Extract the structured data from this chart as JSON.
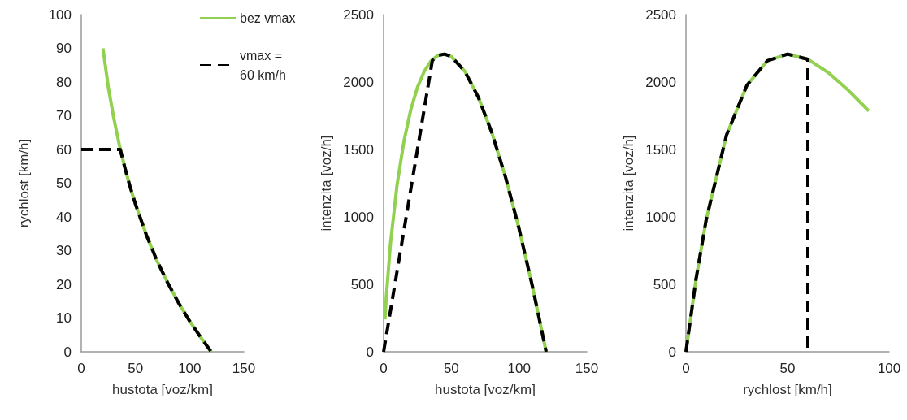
{
  "chart_data": [
    {
      "type": "line",
      "xlabel": "hustota [voz/km]",
      "ylabel": "rychlost [km/h]",
      "xlim": [
        0,
        150
      ],
      "xticks": [
        0,
        50,
        100,
        150
      ],
      "ylim": [
        0,
        100
      ],
      "yticks": [
        0,
        10,
        20,
        30,
        40,
        50,
        60,
        70,
        80,
        90,
        100
      ],
      "grid": false,
      "legend": "top right",
      "marker": "none",
      "series": [
        {
          "name": "bez vmax",
          "color": "#92d050",
          "line_style": "solid",
          "x": [
            20,
            25,
            30,
            35,
            40,
            45,
            50,
            60,
            70,
            80,
            90,
            100,
            110,
            120
          ],
          "values": [
            90,
            78.4,
            69.3,
            61.6,
            54.9,
            49,
            43.8,
            34.7,
            26.9,
            20.3,
            14.4,
            9.1,
            4.4,
            0
          ]
        },
        {
          "name": "vmax = 60 km/h",
          "color": "#000000",
          "line_style": "dashed",
          "x": [
            0,
            36,
            40,
            45,
            50,
            60,
            70,
            80,
            90,
            100,
            110,
            120
          ],
          "values": [
            60,
            60,
            54.9,
            49,
            43.8,
            34.7,
            26.9,
            20.3,
            14.4,
            9.1,
            4.4,
            0
          ]
        }
      ]
    },
    {
      "type": "line",
      "xlabel": "hustota [voz/km]",
      "ylabel": "intenzita [voz/h]",
      "xlim": [
        0,
        150
      ],
      "xticks": [
        0,
        50,
        100,
        150
      ],
      "ylim": [
        0,
        2500
      ],
      "yticks": [
        0,
        500,
        1000,
        1500,
        2000,
        2500
      ],
      "grid": false,
      "legend": false,
      "marker": "none",
      "series": [
        {
          "color": "#92d050",
          "line_style": "solid",
          "x": [
            1,
            2,
            5,
            10,
            15,
            20,
            25,
            30,
            35,
            40,
            45,
            50,
            60,
            70,
            80,
            90,
            100,
            110,
            120
          ],
          "values": [
            240,
            409,
            795,
            1242,
            1560,
            1792,
            1961,
            2079,
            2156,
            2197,
            2207,
            2189,
            2079,
            1886,
            1622,
            1295,
            912,
            479,
            0
          ]
        },
        {
          "color": "#000000",
          "line_style": "dashed",
          "x": [
            0,
            36,
            40,
            45,
            50,
            60,
            70,
            80,
            90,
            100,
            110,
            120
          ],
          "values": [
            0,
            2160,
            2197,
            2207,
            2189,
            2079,
            1886,
            1622,
            1295,
            912,
            479,
            0
          ]
        }
      ]
    },
    {
      "type": "line",
      "xlabel": "rychlost [km/h]",
      "ylabel": "intenzita [voz/h]",
      "xlim": [
        0,
        100
      ],
      "xticks": [
        0,
        50,
        100
      ],
      "ylim": [
        0,
        2500
      ],
      "yticks": [
        0,
        500,
        1000,
        1500,
        2000,
        2500
      ],
      "grid": false,
      "legend": false,
      "marker": "none",
      "series": [
        {
          "color": "#92d050",
          "line_style": "solid",
          "x": [
            0,
            5,
            10,
            20,
            30,
            40,
            50,
            60,
            70,
            80,
            90
          ],
          "values": [
            0,
            543,
            982,
            1609,
            1976,
            2157,
            2207,
            2169,
            2071,
            1938,
            1785
          ]
        },
        {
          "color": "#000000",
          "line_style": "dashed",
          "x": [
            0,
            5,
            10,
            20,
            30,
            40,
            50,
            60,
            60
          ],
          "values": [
            0,
            543,
            982,
            1609,
            1976,
            2157,
            2207,
            2169,
            0
          ]
        }
      ]
    }
  ]
}
